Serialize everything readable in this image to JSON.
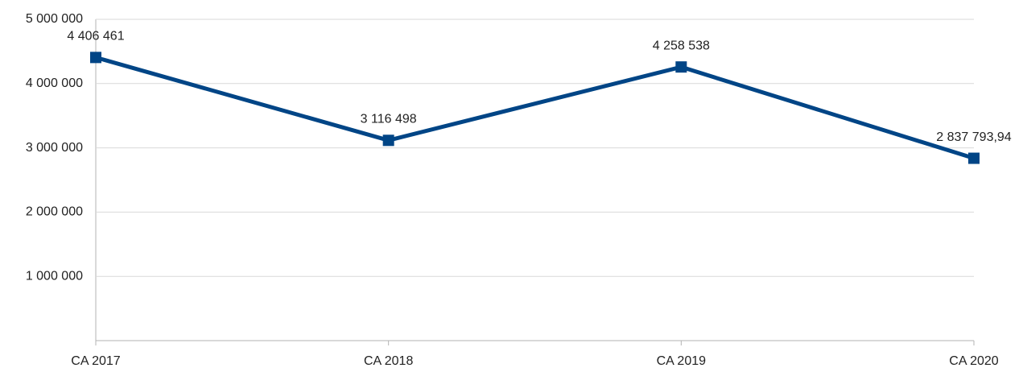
{
  "chart_data": {
    "type": "line",
    "categories": [
      "CA 2017",
      "CA 2018",
      "CA 2019",
      "CA 2020"
    ],
    "series": [
      {
        "color": "#004586",
        "values": [
          4406461,
          3116498,
          4258538,
          2837793.94
        ],
        "value_labels": [
          "4 406 461",
          "3 116 498",
          "4 258 538",
          "2 837 793,94"
        ]
      }
    ],
    "ylim": [
      0,
      5000000
    ],
    "yticks": [
      {
        "value": 1000000,
        "label": "1 000 000"
      },
      {
        "value": 2000000,
        "label": "2 000 000"
      },
      {
        "value": 3000000,
        "label": "3 000 000"
      },
      {
        "value": 4000000,
        "label": "4 000 000"
      },
      {
        "value": 5000000,
        "label": "5 000 000"
      }
    ],
    "grid": true
  }
}
